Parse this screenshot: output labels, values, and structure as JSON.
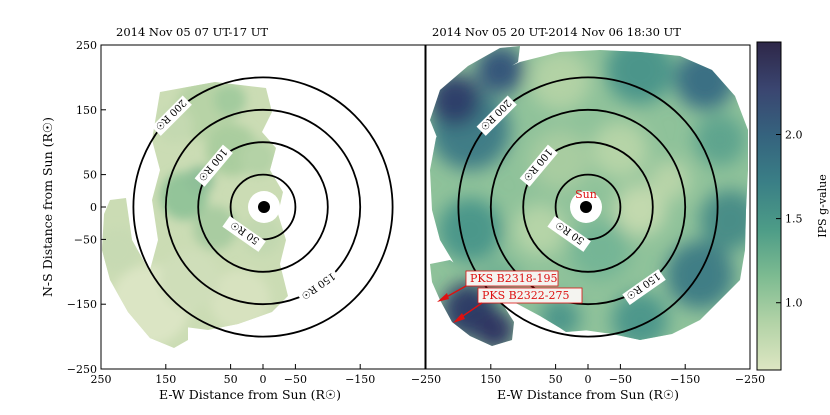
{
  "chart_data": {
    "type": "heatmap",
    "colorscale": {
      "label": "IPS g-value",
      "range": [
        0.6,
        2.55
      ],
      "ticks": [
        "1.0",
        "1.5",
        "2.0"
      ],
      "tick_values": [
        1.0,
        1.5,
        2.0
      ],
      "stops": [
        "#dde6c2",
        "#b3d3a7",
        "#7dbb91",
        "#4d9c87",
        "#3a7f86",
        "#35637e",
        "#3a4570",
        "#2e2748"
      ]
    },
    "panels": [
      {
        "title": "2014 Nov 05 07 UT-17 UT",
        "xlabel": "E-W Distance from Sun (R☉)",
        "ylabel": "N-S Distance from Sun (R☉)",
        "xlim": [
          250,
          -250
        ],
        "ylim": [
          -250,
          250
        ],
        "xticks": [
          250,
          150,
          50,
          0,
          -50,
          -150
        ],
        "xtick_labels": [
          "250",
          "150",
          "50",
          "0",
          "−50",
          "−150"
        ],
        "yticks": [
          250,
          150,
          50,
          0,
          -50,
          -150,
          -250
        ],
        "ytick_labels": [
          "250",
          "150",
          "50",
          "0",
          "−50",
          "−150",
          "−250"
        ],
        "rings": [
          50,
          100,
          150,
          200
        ],
        "ring_labels": [
          "50 R☉",
          "100 R☉",
          "150 R☉",
          "200 R☉"
        ]
      },
      {
        "title": "2014 Nov 05 20 UT-2014 Nov 06 18:30 UT",
        "xlabel": "E-W Distance from Sun (R☉)",
        "xlim": [
          250,
          -250
        ],
        "ylim": [
          -250,
          250
        ],
        "xticks": [
          -250,
          150,
          50,
          0,
          -50,
          -150,
          -250
        ],
        "xtick_labels": [
          "−250",
          "150",
          "50",
          "0",
          "−50",
          "−150",
          "−250"
        ],
        "rings": [
          50,
          100,
          150,
          200
        ],
        "ring_labels": [
          "50 R☉",
          "100 R☉",
          "150 R☉",
          "200 R☉"
        ],
        "sun_label": "Sun",
        "annotations": [
          "PKS B2318-195",
          "PKS B2322-275"
        ]
      }
    ]
  }
}
